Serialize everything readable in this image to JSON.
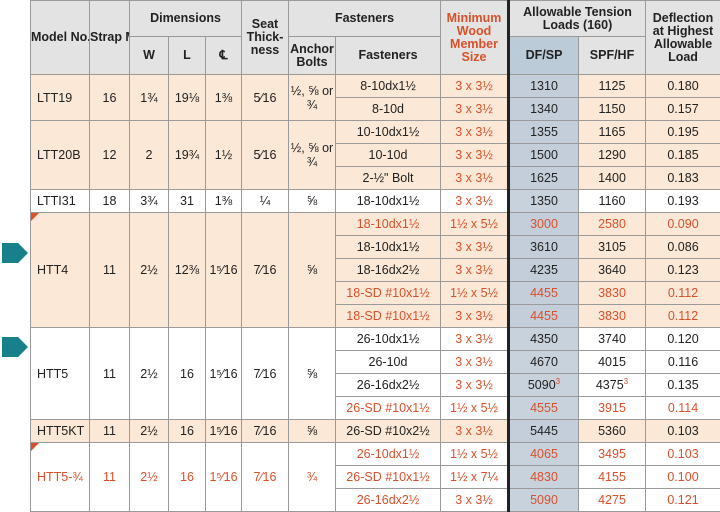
{
  "header": {
    "model": "Model No.",
    "strap": "Strap Mat. (Ga)",
    "dimensions": "Dimensions",
    "w": "W",
    "l": "L",
    "cl": "℄",
    "seat": "Seat Thick-ness",
    "fasteners_group": "Fasteners",
    "anchor": "Anchor Bolts",
    "fasteners": "Fasteners",
    "min_wood": "Minimum Wood Member Size",
    "allowable": "Allowable Tension Loads (160)",
    "dfsp": "DF/SP",
    "spfhf": "SPF/HF",
    "deflection": "Deflection at Highest Allowable Load"
  },
  "groups": [
    {
      "model": "LTT19",
      "strap": "16",
      "w": "1¾",
      "l": "19⅛",
      "cl": "1⅜",
      "seat": "5⁄16",
      "anchor": "½, ⅝ or ¾",
      "red_model": false,
      "flag": false,
      "bg": "a",
      "rows": [
        {
          "fastener": "8-10dx1½",
          "wood": "3 x 3½",
          "df": "1310",
          "spf": "1125",
          "defl": "0.180",
          "red": false
        },
        {
          "fastener": "8-10d",
          "wood": "3 x 3½",
          "df": "1340",
          "spf": "1150",
          "defl": "0.157",
          "red": false
        }
      ]
    },
    {
      "model": "LTT20B",
      "strap": "12",
      "w": "2",
      "l": "19¾",
      "cl": "1½",
      "seat": "5⁄16",
      "anchor": "½, ⅝ or ¾",
      "red_model": false,
      "flag": false,
      "bg": "a",
      "rows": [
        {
          "fastener": "10-10dx1½",
          "wood": "3 x 3½",
          "df": "1355",
          "spf": "1165",
          "defl": "0.195",
          "red": false
        },
        {
          "fastener": "10-10d",
          "wood": "3 x 3½",
          "df": "1500",
          "spf": "1290",
          "defl": "0.185",
          "red": false
        },
        {
          "fastener": "2-½\" Bolt",
          "wood": "3 x 3½",
          "df": "1625",
          "spf": "1400",
          "defl": "0.183",
          "red": false
        }
      ]
    },
    {
      "model": "LTTI31",
      "strap": "18",
      "w": "3¾",
      "l": "31",
      "cl": "1⅜",
      "seat": "¼",
      "anchor": "⅝",
      "red_model": false,
      "flag": false,
      "bg": "b",
      "rows": [
        {
          "fastener": "18-10dx1½",
          "wood": "3 x 3½",
          "df": "1350",
          "spf": "1160",
          "defl": "0.193",
          "red": false
        }
      ]
    },
    {
      "model": "HTT4",
      "strap": "11",
      "w": "2½",
      "l": "12⅜",
      "cl": "1⁵⁄16",
      "seat": "7⁄16",
      "anchor": "⅝",
      "red_model": false,
      "flag": true,
      "bg": "a",
      "rows": [
        {
          "fastener": "18-10dx1½",
          "wood": "1½ x 5½",
          "df": "3000",
          "spf": "2580",
          "defl": "0.090",
          "red": true
        },
        {
          "fastener": "18-10dx1½",
          "wood": "3 x 3½",
          "df": "3610",
          "spf": "3105",
          "defl": "0.086",
          "red": false
        },
        {
          "fastener": "18-16dx2½",
          "wood": "3 x 3½",
          "df": "4235",
          "spf": "3640",
          "defl": "0.123",
          "red": false
        },
        {
          "fastener": "18-SD #10x1½",
          "wood": "1½ x 5½",
          "df": "4455",
          "spf": "3830",
          "defl": "0.112",
          "red": true
        },
        {
          "fastener": "18-SD #10x1½",
          "wood": "3 x 3½",
          "df": "4455",
          "spf": "3830",
          "defl": "0.112",
          "red": true
        }
      ]
    },
    {
      "model": "HTT5",
      "strap": "11",
      "w": "2½",
      "l": "16",
      "cl": "1⁵⁄16",
      "seat": "7⁄16",
      "anchor": "⅝",
      "red_model": false,
      "flag": false,
      "bg": "b",
      "rows": [
        {
          "fastener": "26-10dx1½",
          "wood": "3 x 3½",
          "df": "4350",
          "spf": "3740",
          "defl": "0.120",
          "red": false
        },
        {
          "fastener": "26-10d",
          "wood": "3 x 3½",
          "df": "4670",
          "spf": "4015",
          "defl": "0.116",
          "red": false
        },
        {
          "fastener": "26-16dx2½",
          "wood": "3 x 3½",
          "df": "5090",
          "spf": "4375",
          "defl": "0.135",
          "red": false,
          "sup": "3"
        },
        {
          "fastener": "26-SD #10x1½",
          "wood": "1½ x 5½",
          "df": "4555",
          "spf": "3915",
          "defl": "0.114",
          "red": true
        }
      ]
    },
    {
      "model": "HTT5KT",
      "strap": "11",
      "w": "2½",
      "l": "16",
      "cl": "1⁵⁄16",
      "seat": "7⁄16",
      "anchor": "⅝",
      "red_model": false,
      "flag": false,
      "bg": "a",
      "rows": [
        {
          "fastener": "26-SD #10x2½",
          "wood": "3 x 3½",
          "df": "5445",
          "spf": "5360",
          "defl": "0.103",
          "red": false
        }
      ]
    },
    {
      "model": "HTT5-¾",
      "strap": "11",
      "w": "2½",
      "l": "16",
      "cl": "1⁵⁄16",
      "seat": "7⁄16",
      "anchor": "¾",
      "red_model": true,
      "flag": true,
      "bg": "b",
      "rows": [
        {
          "fastener": "26-10dx1½",
          "wood": "1½ x 5½",
          "df": "4065",
          "spf": "3495",
          "defl": "0.103",
          "red": true
        },
        {
          "fastener": "26-SD #10x1½",
          "wood": "1½ x 7¼",
          "df": "4830",
          "spf": "4155",
          "defl": "0.100",
          "red": true
        },
        {
          "fastener": "26-16dx2½",
          "wood": "3 x 3½",
          "df": "5090",
          "spf": "4275",
          "defl": "0.121",
          "red": true
        }
      ]
    }
  ],
  "colors": {
    "accent": "#d9502a",
    "marker": "#17808a",
    "peach": "#fbe8d6",
    "dfsp": "#c3ceda"
  }
}
